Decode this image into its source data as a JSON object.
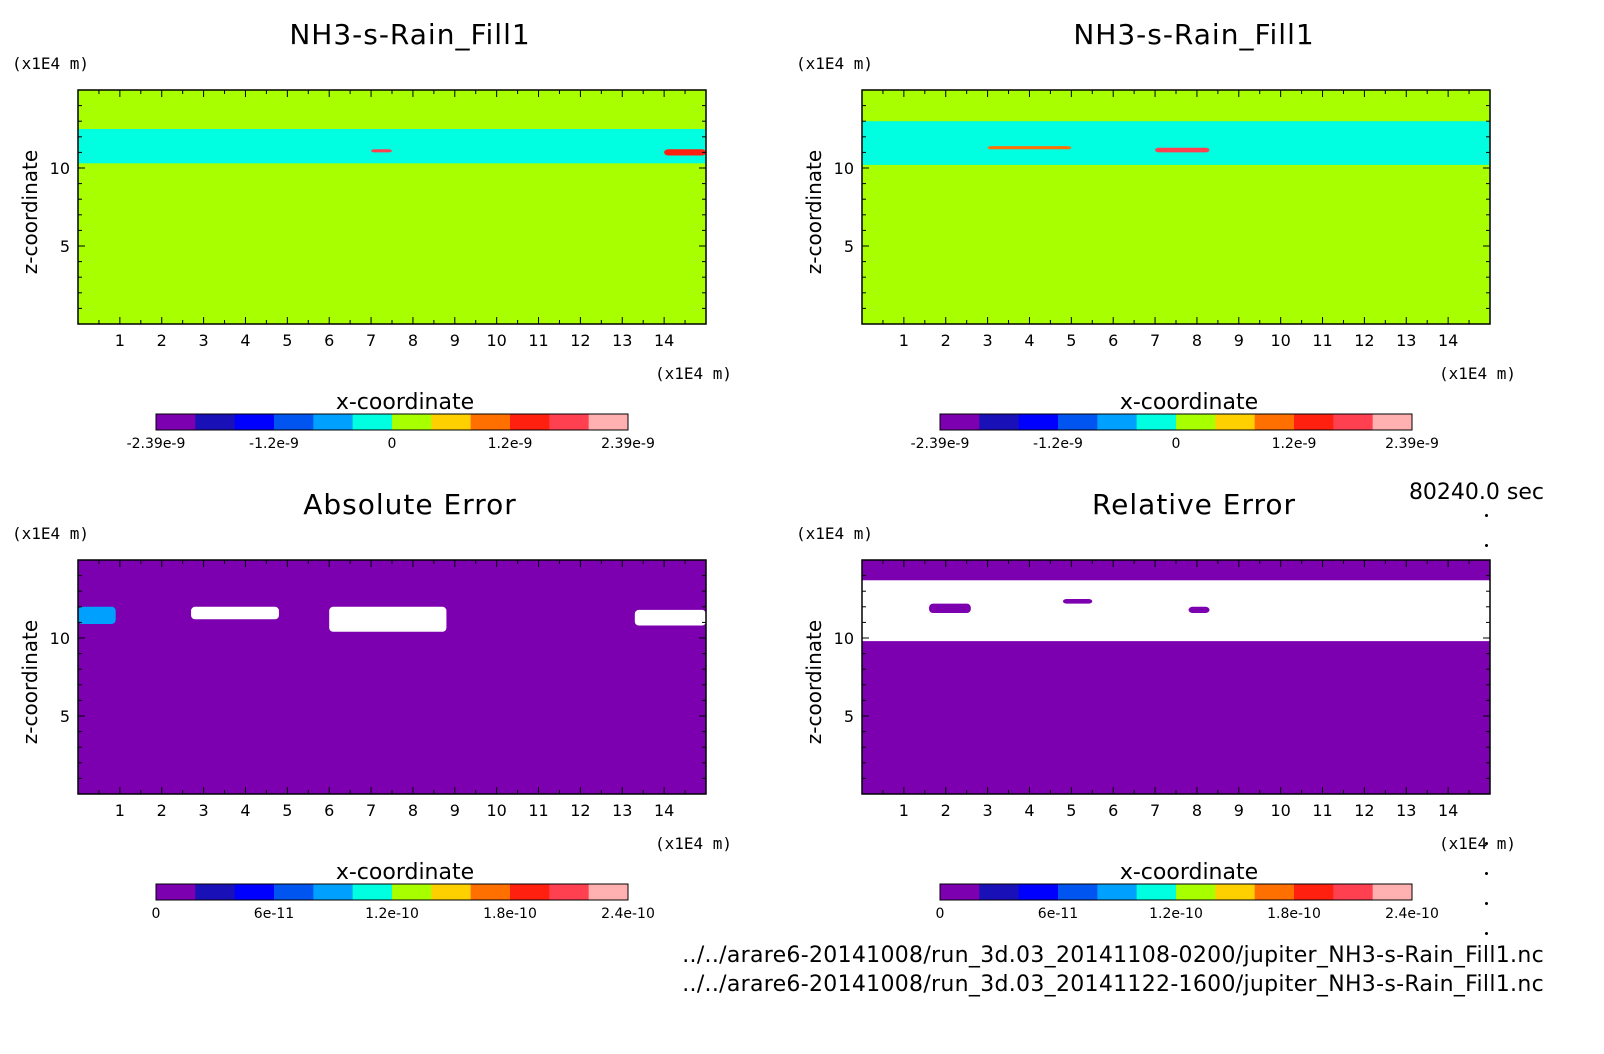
{
  "colorbar_colors": [
    "#7d00b0",
    "#1a10b8",
    "#0000ff",
    "#0055f0",
    "#00a0ff",
    "#00ffe0",
    "#a8ff00",
    "#ffd000",
    "#ff7000",
    "#ff2010",
    "#ff4050",
    "#ffb0b0"
  ],
  "chart_data": [
    {
      "type": "heatmap",
      "title": "NH3-s-Rain_Fill1",
      "xlabel": "x-coordinate",
      "ylabel": "z-coordinate",
      "xunit": "(x1E4 m)",
      "yunit": "(x1E4 m)",
      "xlim": [
        0,
        15
      ],
      "ylim": [
        0,
        15
      ],
      "xticks": [
        "1",
        "2",
        "3",
        "4",
        "5",
        "6",
        "7",
        "8",
        "9",
        "10",
        "11",
        "12",
        "13",
        "14"
      ],
      "yticks": [
        "5",
        "10"
      ],
      "background_color": "#a8ff00",
      "band": {
        "z_range": [
          10.3,
          12.5
        ],
        "color": "#00ffe0"
      },
      "features": [
        {
          "x": [
            7.0,
            7.5
          ],
          "z": [
            11.0,
            11.2
          ],
          "color": "#ff4050"
        },
        {
          "x": [
            14.0,
            15.0
          ],
          "z": [
            10.8,
            11.2
          ],
          "color": "#ff2010"
        }
      ],
      "colorbar": {
        "labels": [
          "-2.39e-9",
          "-1.2e-9",
          "0",
          "1.2e-9",
          "2.39e-9"
        ]
      }
    },
    {
      "type": "heatmap",
      "title": "NH3-s-Rain_Fill1",
      "xlabel": "x-coordinate",
      "ylabel": "z-coordinate",
      "xunit": "(x1E4 m)",
      "yunit": "(x1E4 m)",
      "xlim": [
        0,
        15
      ],
      "ylim": [
        0,
        15
      ],
      "xticks": [
        "1",
        "2",
        "3",
        "4",
        "5",
        "6",
        "7",
        "8",
        "9",
        "10",
        "11",
        "12",
        "13",
        "14"
      ],
      "yticks": [
        "5",
        "10"
      ],
      "background_color": "#a8ff00",
      "band": {
        "z_range": [
          10.2,
          13.0
        ],
        "color": "#00ffe0"
      },
      "features": [
        {
          "x": [
            3.0,
            5.0
          ],
          "z": [
            11.2,
            11.4
          ],
          "color": "#ff7000"
        },
        {
          "x": [
            7.0,
            8.3
          ],
          "z": [
            11.0,
            11.3
          ],
          "color": "#ff4050"
        }
      ],
      "colorbar": {
        "labels": [
          "-2.39e-9",
          "-1.2e-9",
          "0",
          "1.2e-9",
          "2.39e-9"
        ]
      }
    },
    {
      "type": "heatmap",
      "title": "Absolute Error",
      "xlabel": "x-coordinate",
      "ylabel": "z-coordinate",
      "xunit": "(x1E4 m)",
      "yunit": "(x1E4 m)",
      "xlim": [
        0,
        15
      ],
      "ylim": [
        0,
        15
      ],
      "xticks": [
        "1",
        "2",
        "3",
        "4",
        "5",
        "6",
        "7",
        "8",
        "9",
        "10",
        "11",
        "12",
        "13",
        "14"
      ],
      "yticks": [
        "5",
        "10"
      ],
      "background_color": "#7d00b0",
      "features": [
        {
          "x": [
            0.0,
            0.9
          ],
          "z": [
            10.9,
            12.0
          ],
          "color": "#00a0ff"
        },
        {
          "x": [
            2.7,
            4.8
          ],
          "z": [
            11.2,
            12.0
          ],
          "color": "#ffffff"
        },
        {
          "x": [
            6.0,
            8.8
          ],
          "z": [
            10.4,
            12.0
          ],
          "color": "#ffffff"
        },
        {
          "x": [
            13.3,
            15.0
          ],
          "z": [
            10.8,
            11.8
          ],
          "color": "#ffffff"
        }
      ],
      "colorbar": {
        "labels": [
          "0",
          "6e-11",
          "1.2e-10",
          "1.8e-10",
          "2.4e-10"
        ]
      }
    },
    {
      "type": "heatmap",
      "title": "Relative Error",
      "xlabel": "x-coordinate",
      "ylabel": "z-coordinate",
      "xunit": "(x1E4 m)",
      "yunit": "(x1E4 m)",
      "xlim": [
        0,
        15
      ],
      "ylim": [
        0,
        15
      ],
      "xticks": [
        "1",
        "2",
        "3",
        "4",
        "5",
        "6",
        "7",
        "8",
        "9",
        "10",
        "11",
        "12",
        "13",
        "14"
      ],
      "yticks": [
        "5",
        "10"
      ],
      "background_color": "#7d00b0",
      "band": {
        "z_range": [
          9.8,
          13.7
        ],
        "color": "#ffffff"
      },
      "features": [
        {
          "x": [
            1.6,
            2.6
          ],
          "z": [
            11.6,
            12.2
          ],
          "color": "#7d00b0"
        },
        {
          "x": [
            4.8,
            5.5
          ],
          "z": [
            12.2,
            12.5
          ],
          "color": "#7d00b0"
        },
        {
          "x": [
            7.8,
            8.3
          ],
          "z": [
            11.6,
            12.0
          ],
          "color": "#7d00b0"
        }
      ],
      "colorbar": {
        "labels": [
          "0",
          "6e-11",
          "1.2e-10",
          "1.8e-10",
          "2.4e-10"
        ]
      }
    }
  ],
  "time_label": "80240.0 sec",
  "file_paths": [
    "../../arare6-20141008/run_3d.03_20141108-0200/jupiter_NH3-s-Rain_Fill1.nc",
    "../../arare6-20141008/run_3d.03_20141122-1600/jupiter_NH3-s-Rain_Fill1.nc"
  ]
}
